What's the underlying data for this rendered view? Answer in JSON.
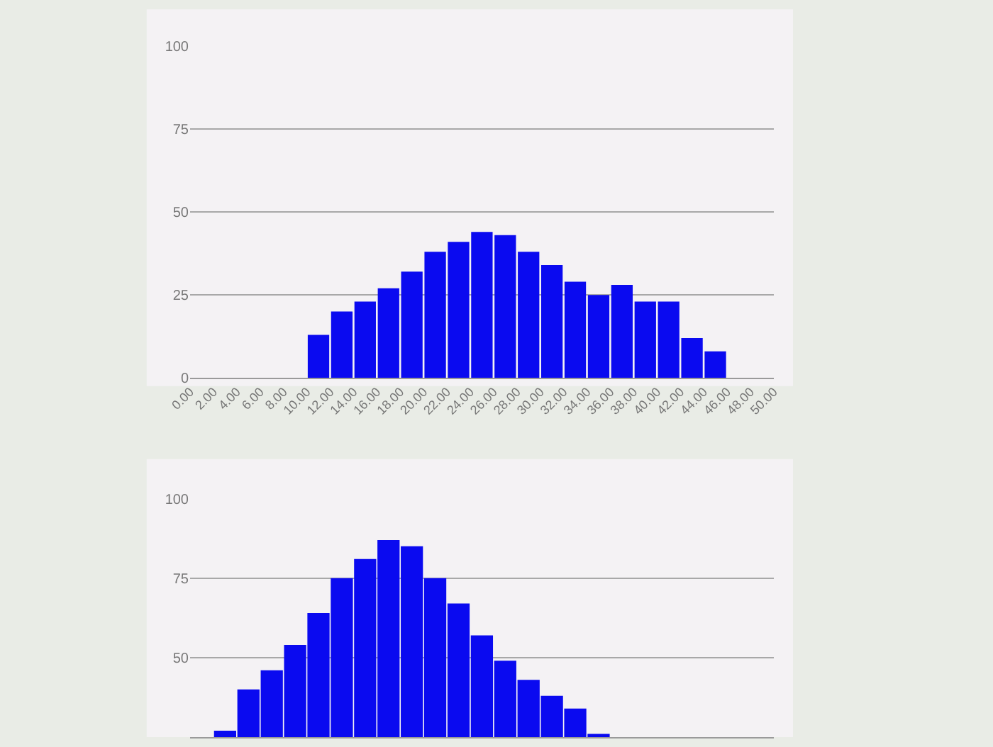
{
  "chart_data": [
    {
      "type": "histogram",
      "bins": [
        0,
        2,
        4,
        6,
        8,
        10,
        12,
        14,
        16,
        18,
        20,
        22,
        24,
        26,
        28,
        30,
        32,
        34,
        36,
        38,
        40,
        42,
        44,
        46,
        48,
        50
      ],
      "values": [
        0,
        0,
        0,
        0,
        0,
        13,
        20,
        23,
        27,
        32,
        38,
        41,
        44,
        43,
        38,
        34,
        29,
        25,
        28,
        23,
        23,
        12,
        8,
        0,
        0
      ],
      "color": "#0a0af0",
      "xlim": [
        0,
        50
      ],
      "xticks": [
        {
          "value": 0,
          "label": "0.00"
        },
        {
          "value": 2,
          "label": "2.00"
        },
        {
          "value": 4,
          "label": "4.00"
        },
        {
          "value": 6,
          "label": "6.00"
        },
        {
          "value": 8,
          "label": "8.00"
        },
        {
          "value": 10,
          "label": "10.00"
        },
        {
          "value": 12,
          "label": "12.00"
        },
        {
          "value": 14,
          "label": "14.00"
        },
        {
          "value": 16,
          "label": "16.00"
        },
        {
          "value": 18,
          "label": "18.00"
        },
        {
          "value": 20,
          "label": "20.00"
        },
        {
          "value": 22,
          "label": "22.00"
        },
        {
          "value": 24,
          "label": "24.00"
        },
        {
          "value": 26,
          "label": "26.00"
        },
        {
          "value": 28,
          "label": "28.00"
        },
        {
          "value": 30,
          "label": "30.00"
        },
        {
          "value": 32,
          "label": "32.00"
        },
        {
          "value": 34,
          "label": "34.00"
        },
        {
          "value": 36,
          "label": "36.00"
        },
        {
          "value": 38,
          "label": "38.00"
        },
        {
          "value": 40,
          "label": "40.00"
        },
        {
          "value": 42,
          "label": "42.00"
        },
        {
          "value": 44,
          "label": "44.00"
        },
        {
          "value": 46,
          "label": "46.00"
        },
        {
          "value": 48,
          "label": "48.00"
        },
        {
          "value": 50,
          "label": "50.00"
        }
      ],
      "ylim": [
        0,
        100
      ],
      "yticks": [
        0,
        25,
        50,
        75,
        100
      ],
      "grid": "y"
    },
    {
      "type": "bar",
      "categories": [
        null,
        null,
        null,
        null,
        null,
        null,
        null,
        null,
        null,
        null,
        null,
        null,
        null,
        null,
        null,
        null,
        null,
        null,
        null,
        null,
        null,
        null,
        null,
        null,
        null
      ],
      "values": [
        null,
        27,
        40,
        46,
        54,
        64,
        75,
        81,
        87,
        85,
        75,
        67,
        57,
        49,
        43,
        38,
        34,
        26,
        null,
        null,
        null,
        null,
        null,
        null,
        null
      ],
      "color": "#0a0af0",
      "ylim": [
        25,
        100
      ],
      "yticks": [
        50,
        75,
        100
      ],
      "grid": "y",
      "tick_labels": "y"
    }
  ]
}
